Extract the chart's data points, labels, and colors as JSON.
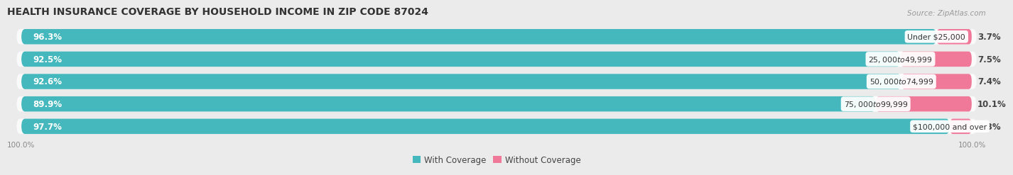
{
  "title": "HEALTH INSURANCE COVERAGE BY HOUSEHOLD INCOME IN ZIP CODE 87024",
  "source": "Source: ZipAtlas.com",
  "categories": [
    "Under $25,000",
    "$25,000 to $49,999",
    "$50,000 to $74,999",
    "$75,000 to $99,999",
    "$100,000 and over"
  ],
  "with_coverage": [
    96.3,
    92.5,
    92.6,
    89.9,
    97.7
  ],
  "without_coverage": [
    3.7,
    7.5,
    7.4,
    10.1,
    2.3
  ],
  "color_with": "#45B8BD",
  "color_without": "#F07898",
  "bg_color": "#EBEBEB",
  "bar_bg": "#FAFAFA",
  "title_fontsize": 10,
  "source_fontsize": 7.5,
  "label_fontsize": 8.5,
  "cat_fontsize": 7.8,
  "axis_label_left": "100.0%",
  "axis_label_right": "100.0%"
}
